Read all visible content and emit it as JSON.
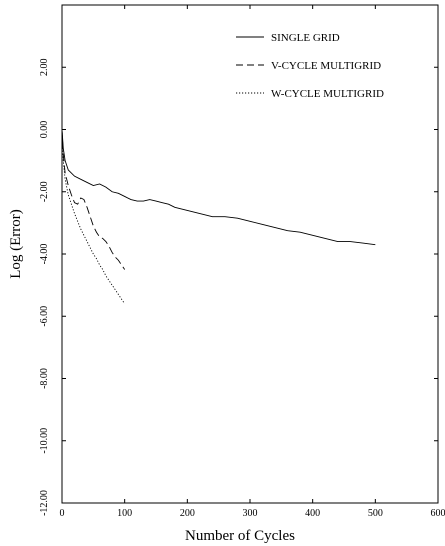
{
  "chart_data": {
    "type": "line",
    "xlabel": "Number of Cycles",
    "ylabel": "Log (Error)",
    "xlim": [
      0,
      600
    ],
    "ylim": [
      -12,
      4
    ],
    "x_ticks": [
      0,
      100,
      200,
      300,
      400,
      500,
      600
    ],
    "x_tick_labels": [
      "0",
      "100",
      "200",
      "300",
      "400",
      "500",
      "600"
    ],
    "y_ticks": [
      2,
      0,
      -2,
      -4,
      -6,
      -8,
      -10,
      -12
    ],
    "y_tick_labels": [
      "2.00",
      "0.00",
      "-2.00",
      "-4.00",
      "-6.00",
      "-8.00",
      "-10.00",
      "-12.00"
    ],
    "grid": false,
    "legend_position": "top-right",
    "series": [
      {
        "name": "SINGLE GRID",
        "dash": "solid",
        "x": [
          0,
          2,
          5,
          10,
          20,
          30,
          40,
          50,
          60,
          70,
          80,
          90,
          100,
          110,
          120,
          130,
          140,
          150,
          160,
          170,
          180,
          200,
          220,
          240,
          260,
          280,
          300,
          320,
          340,
          360,
          380,
          400,
          420,
          440,
          460,
          480,
          500
        ],
        "y": [
          0.0,
          -0.6,
          -1.0,
          -1.3,
          -1.5,
          -1.6,
          -1.7,
          -1.8,
          -1.75,
          -1.85,
          -2.0,
          -2.05,
          -2.15,
          -2.25,
          -2.3,
          -2.3,
          -2.25,
          -2.3,
          -2.35,
          -2.4,
          -2.5,
          -2.6,
          -2.7,
          -2.8,
          -2.8,
          -2.85,
          -2.95,
          -3.05,
          -3.15,
          -3.25,
          -3.3,
          -3.4,
          -3.5,
          -3.6,
          -3.6,
          -3.65,
          -3.7
        ]
      },
      {
        "name": "V-CYCLE MULTIGRID",
        "dash": "dashed",
        "x": [
          0,
          2,
          5,
          10,
          15,
          20,
          25,
          30,
          35,
          40,
          45,
          50,
          55,
          60,
          65,
          70,
          75,
          80,
          85,
          90,
          95,
          100
        ],
        "y": [
          0.0,
          -0.8,
          -1.4,
          -1.8,
          -2.1,
          -2.35,
          -2.4,
          -2.2,
          -2.25,
          -2.5,
          -2.8,
          -3.1,
          -3.3,
          -3.45,
          -3.5,
          -3.6,
          -3.75,
          -3.95,
          -4.1,
          -4.2,
          -4.35,
          -4.5
        ]
      },
      {
        "name": "W-CYCLE MULTIGRID",
        "dash": "dotted",
        "x": [
          0,
          2,
          5,
          10,
          15,
          20,
          25,
          30,
          35,
          40,
          45,
          50,
          55,
          60,
          65,
          70,
          75,
          80,
          85,
          90,
          95,
          100
        ],
        "y": [
          0.0,
          -1.0,
          -1.6,
          -2.1,
          -2.4,
          -2.7,
          -2.95,
          -3.2,
          -3.4,
          -3.6,
          -3.8,
          -4.0,
          -4.15,
          -4.35,
          -4.5,
          -4.7,
          -4.85,
          -5.0,
          -5.15,
          -5.3,
          -5.45,
          -5.6
        ]
      }
    ]
  }
}
